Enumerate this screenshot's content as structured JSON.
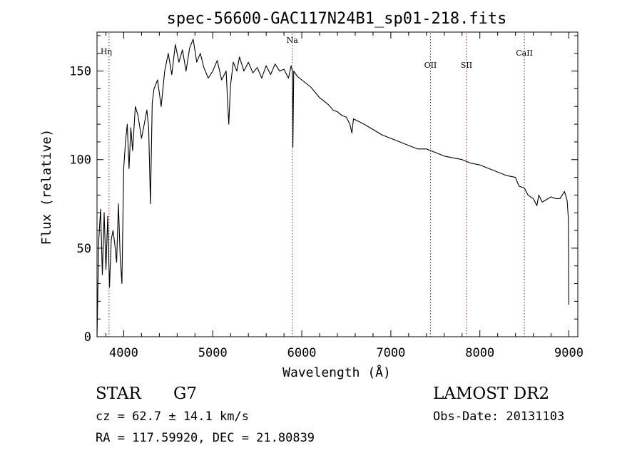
{
  "chart_data": {
    "type": "line",
    "title": "spec-56600-GAC117N24B1_sp01-218.fits",
    "xlabel": "Wavelength (Å)",
    "ylabel": "Flux (relative)",
    "xlim": [
      3700,
      9100
    ],
    "ylim": [
      0,
      172
    ],
    "xticks": [
      4000,
      5000,
      6000,
      7000,
      8000,
      9000
    ],
    "yticks": [
      0,
      50,
      100,
      150
    ],
    "series": [
      {
        "name": "flux",
        "x": [
          3700,
          3720,
          3740,
          3760,
          3780,
          3800,
          3820,
          3840,
          3860,
          3880,
          3900,
          3920,
          3940,
          3960,
          3980,
          4000,
          4020,
          4040,
          4060,
          4080,
          4100,
          4130,
          4160,
          4200,
          4230,
          4260,
          4280,
          4300,
          4320,
          4340,
          4380,
          4420,
          4460,
          4500,
          4540,
          4580,
          4620,
          4660,
          4700,
          4740,
          4780,
          4820,
          4860,
          4900,
          4950,
          5000,
          5050,
          5100,
          5150,
          5180,
          5200,
          5230,
          5270,
          5300,
          5350,
          5400,
          5450,
          5500,
          5550,
          5600,
          5650,
          5700,
          5750,
          5800,
          5850,
          5880,
          5895,
          5900,
          5910,
          5950,
          6000,
          6050,
          6100,
          6150,
          6200,
          6250,
          6300,
          6350,
          6400,
          6450,
          6500,
          6540,
          6563,
          6580,
          6620,
          6700,
          6800,
          6900,
          7000,
          7100,
          7200,
          7300,
          7400,
          7500,
          7600,
          7700,
          7800,
          7900,
          8000,
          8100,
          8200,
          8300,
          8400,
          8440,
          8500,
          8540,
          8600,
          8640,
          8662,
          8700,
          8800,
          8850,
          8900,
          8950,
          8980,
          8995,
          9000
        ],
        "values": [
          0,
          55,
          72,
          35,
          70,
          38,
          68,
          28,
          55,
          60,
          52,
          42,
          75,
          45,
          30,
          95,
          110,
          120,
          95,
          118,
          105,
          130,
          125,
          112,
          120,
          128,
          118,
          75,
          132,
          140,
          145,
          130,
          150,
          160,
          148,
          165,
          155,
          162,
          150,
          163,
          168,
          155,
          160,
          152,
          146,
          150,
          156,
          145,
          150,
          120,
          142,
          155,
          150,
          158,
          150,
          155,
          149,
          152,
          146,
          153,
          148,
          154,
          150,
          151,
          146,
          153,
          150,
          107,
          150,
          147,
          145,
          143,
          141,
          138,
          135,
          133,
          131,
          128,
          127,
          125,
          124,
          120,
          115,
          123,
          122,
          120,
          117,
          114,
          112,
          110,
          108,
          106,
          106,
          104,
          102,
          101,
          100,
          98,
          97,
          95,
          93,
          91,
          90,
          85,
          84,
          80,
          78,
          74,
          80,
          76,
          79,
          78,
          78,
          82,
          77,
          66,
          18
        ]
      }
    ],
    "lines": [
      {
        "label": "Hη",
        "x": 3835
      },
      {
        "label": "Na",
        "x": 5893
      },
      {
        "label": "OII",
        "x": 7445
      },
      {
        "label": "SII",
        "x": 7850
      },
      {
        "label": "CaII",
        "x": 8500
      }
    ]
  },
  "info": {
    "object_class": "STAR",
    "subclass": "G7",
    "survey": "LAMOST DR2",
    "cz": "cz = 62.7 ± 14.1 km/s",
    "obs_date": "Obs-Date: 20131103",
    "coords": "RA = 117.59920, DEC =  21.80839"
  }
}
